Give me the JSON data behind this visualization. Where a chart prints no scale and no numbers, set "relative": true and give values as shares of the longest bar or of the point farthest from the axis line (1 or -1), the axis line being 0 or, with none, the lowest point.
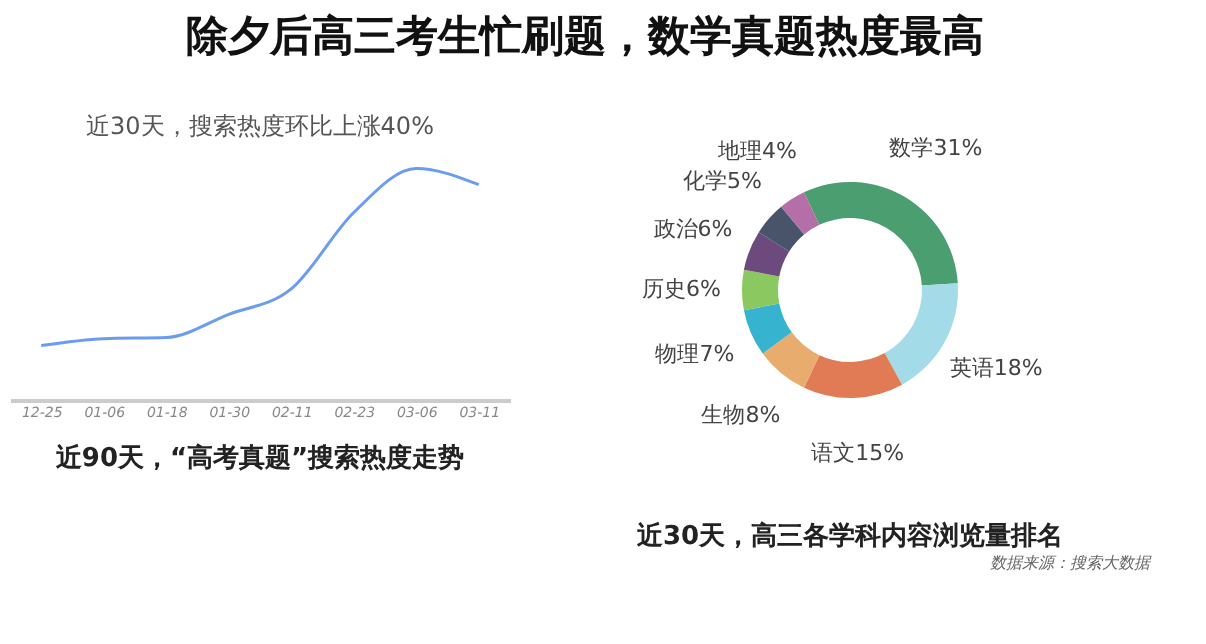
{
  "chart_data": [
    {
      "type": "line",
      "title": "近90天，“高考真题”搜索热度走势",
      "annotations": [
        "除夕后高三考生忙刷题，数学真题热度最高",
        "近30天，搜索热度环比上涨40%"
      ],
      "relative": true,
      "categories": [
        "12-25",
        "01-06",
        "01-18",
        "01-30",
        "02-11",
        "02-23",
        "03-06",
        "03-11"
      ],
      "series": [
        {
          "color": "#6b9cf0",
          "values": [
            0.235,
            0.265,
            0.27,
            0.37,
            0.48,
            0.81,
            1.0,
            0.93
          ]
        }
      ],
      "marker": "none",
      "line_style": "solid",
      "grid": false
    },
    {
      "type": "donut",
      "title": "近30天，高三各学科内容浏览量排名",
      "annotations": [
        "数据来源：搜索大数据"
      ],
      "categories": [
        "数学",
        "英语",
        "语文",
        "生物",
        "物理",
        "历史",
        "政治",
        "化学",
        "地理"
      ],
      "values": [
        31,
        18,
        15,
        8,
        7,
        6,
        6,
        5,
        4
      ],
      "colors": [
        "#4a9e70",
        "#a3dbe8",
        "#e07b55",
        "#e8ad6e",
        "#35b3cf",
        "#8cc860",
        "#6d4a7e",
        "#48546a",
        "#b46ea8"
      ],
      "value_labels": [
        "31%",
        "18%",
        "15%",
        "8%",
        "7%",
        "6%",
        "6%",
        "5%",
        "4%"
      ]
    }
  ]
}
